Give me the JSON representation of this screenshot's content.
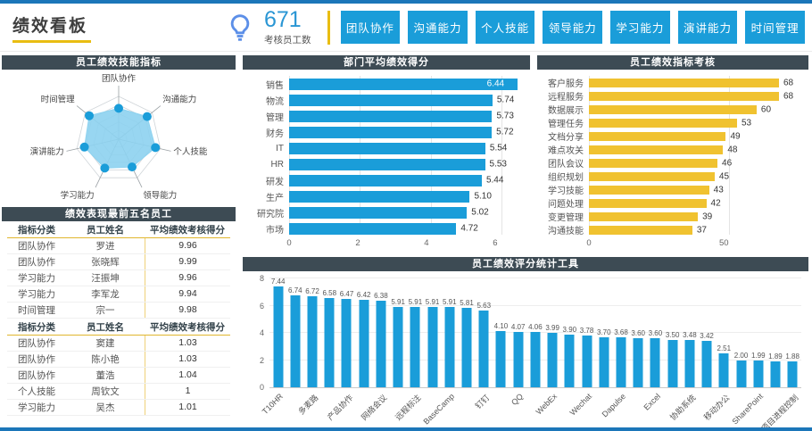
{
  "header": {
    "title": "绩效看板",
    "kpi_value": "671",
    "kpi_label": "考核员工数",
    "buttons": [
      "团队协作",
      "沟通能力",
      "个人技能",
      "领导能力",
      "学习能力",
      "演讲能力",
      "时间管理"
    ]
  },
  "colors": {
    "primary_blue": "#1A9DD9",
    "gold": "#F0C230",
    "panel_header_bg": "#3D4B54",
    "accent_yellow": "#E9BD12",
    "page_edge_blue": "#1B76B9",
    "kpi_blue": "#2A96D4",
    "bulb_blue": "#5C8FE8"
  },
  "tables": {
    "panel_title": "绩效表现最前五名员工",
    "columns": [
      "指标分类",
      "员工姓名",
      "平均绩效考核得分"
    ],
    "top_rows": [
      [
        "团队协作",
        "罗进",
        "9.96"
      ],
      [
        "团队协作",
        "张晓辉",
        "9.99"
      ],
      [
        "学习能力",
        "汪振坤",
        "9.96"
      ],
      [
        "学习能力",
        "李军龙",
        "9.94"
      ],
      [
        "时间管理",
        "宗一",
        "9.98"
      ]
    ],
    "bottom_rows": [
      [
        "团队协作",
        "窦建",
        "1.03"
      ],
      [
        "团队协作",
        "陈小艳",
        "1.03"
      ],
      [
        "团队协作",
        "董浩",
        "1.04"
      ],
      [
        "个人技能",
        "周钦文",
        "1"
      ],
      [
        "学习能力",
        "吴杰",
        "1.01"
      ]
    ]
  },
  "chart_data": [
    {
      "type": "radar",
      "title": "员工绩效技能指标",
      "axes": [
        "团队协作",
        "沟通能力",
        "个人技能",
        "领导能力",
        "学习能力",
        "演讲能力",
        "时间管理"
      ],
      "values_fraction_est": [
        0.72,
        0.85,
        0.88,
        0.72,
        0.75,
        0.82,
        0.88
      ],
      "fill_color": "#8DD2F0",
      "dot_color": "#1A9DD9"
    },
    {
      "type": "bar",
      "orientation": "horizontal",
      "title": "部门平均绩效得分",
      "categories": [
        "销售",
        "物流",
        "管理",
        "财务",
        "IT",
        "HR",
        "研发",
        "生产",
        "研究院",
        "市场"
      ],
      "values": [
        "6.44",
        "5.74",
        "5.73",
        "5.72",
        "5.54",
        "5.53",
        "5.44",
        "5.10",
        "5.02",
        "4.72"
      ],
      "x_ticks": [
        0,
        2,
        4,
        6
      ],
      "xlim": [
        0,
        6.6
      ],
      "color": "#1A9DD9"
    },
    {
      "type": "bar",
      "orientation": "horizontal",
      "title": "员工绩效指标考核",
      "categories": [
        "客户服务",
        "远程服务",
        "数据展示",
        "管理任务",
        "文档分享",
        "难点攻关",
        "团队会议",
        "组织规划",
        "学习技能",
        "问题处理",
        "变更管理",
        "沟通技能"
      ],
      "values": [
        "68",
        "68",
        "60",
        "53",
        "49",
        "48",
        "46",
        "45",
        "43",
        "42",
        "39",
        "37"
      ],
      "x_ticks": [
        0,
        50
      ],
      "xlim": [
        0,
        76
      ],
      "color": "#F0C230"
    },
    {
      "type": "bar",
      "orientation": "vertical",
      "title": "员工绩效评分统计工具",
      "values": [
        "7.44",
        "6.74",
        "6.72",
        "6.58",
        "6.47",
        "6.42",
        "6.38",
        "5.91",
        "5.91",
        "5.91",
        "5.91",
        "5.81",
        "5.63",
        "4.10",
        "4.07",
        "4.06",
        "3.99",
        "3.90",
        "3.78",
        "3.70",
        "3.68",
        "3.60",
        "3.60",
        "3.50",
        "3.48",
        "3.42",
        "2.51",
        "2.00",
        "1.99",
        "1.89",
        "1.88"
      ],
      "x_labels": [
        "T10HR",
        "多麦路",
        "产品协作",
        "网络会议",
        "远程标注",
        "BaseCamp",
        "钉钉",
        "QQ",
        "WebEx",
        "Wechat",
        "Dapulse",
        "Excel",
        "协助系统",
        "移动办公",
        "SharePoint",
        "项目进程控制"
      ],
      "x_label_interval": 2,
      "y_ticks": [
        0,
        2,
        4,
        6,
        8
      ],
      "ylim": [
        0,
        8
      ],
      "color": "#1A9DD9"
    }
  ]
}
